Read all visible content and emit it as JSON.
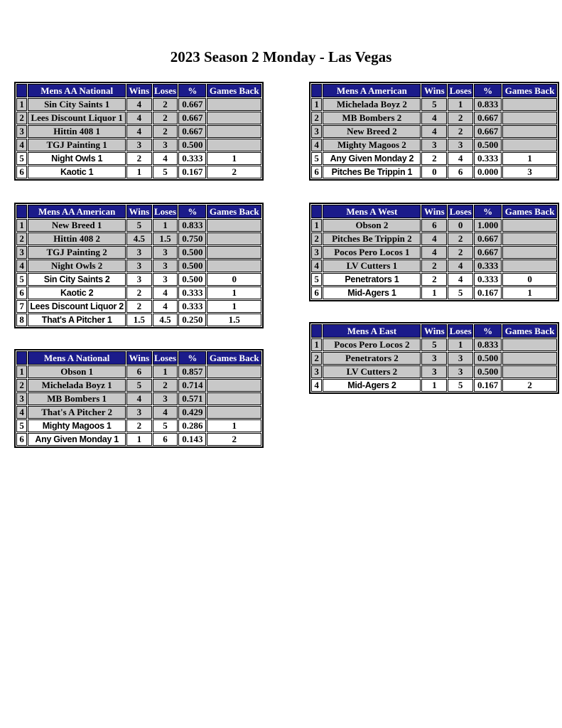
{
  "page": {
    "title": "2023 Season 2 Monday - Las Vegas"
  },
  "colors": {
    "header_bg": "#1b1b8a",
    "header_text": "#ffffff",
    "shaded_row_bg": "#c8c8c8",
    "unshaded_row_bg": "#ffffff",
    "border": "#000000",
    "text": "#000000"
  },
  "column_headers": {
    "rank": "",
    "wins": "Wins",
    "loses": "Loses",
    "pct": "%",
    "games_back": "Games Back"
  },
  "tables": [
    {
      "id": "mens-aa-national",
      "name": "Mens AA National",
      "rows": [
        {
          "rank": "1",
          "team": "Sin City Saints 1",
          "wins": "4",
          "loses": "2",
          "pct": "0.667",
          "games_back": "",
          "shaded": true
        },
        {
          "rank": "2",
          "team": "Lees Discount Liquor 1",
          "wins": "4",
          "loses": "2",
          "pct": "0.667",
          "games_back": "",
          "shaded": true
        },
        {
          "rank": "3",
          "team": "Hittin 408 1",
          "wins": "4",
          "loses": "2",
          "pct": "0.667",
          "games_back": "",
          "shaded": true
        },
        {
          "rank": "4",
          "team": "TGJ Painting 1",
          "wins": "3",
          "loses": "3",
          "pct": "0.500",
          "games_back": "",
          "shaded": true
        },
        {
          "rank": "5",
          "team": "Night Owls 1",
          "wins": "2",
          "loses": "4",
          "pct": "0.333",
          "games_back": "1",
          "shaded": false
        },
        {
          "rank": "6",
          "team": "Kaotic 1",
          "wins": "1",
          "loses": "5",
          "pct": "0.167",
          "games_back": "2",
          "shaded": false
        }
      ]
    },
    {
      "id": "mens-a-american",
      "name": "Mens A American",
      "rows": [
        {
          "rank": "1",
          "team": "Michelada Boyz 2",
          "wins": "5",
          "loses": "1",
          "pct": "0.833",
          "games_back": "",
          "shaded": true
        },
        {
          "rank": "2",
          "team": "MB Bombers 2",
          "wins": "4",
          "loses": "2",
          "pct": "0.667",
          "games_back": "",
          "shaded": true
        },
        {
          "rank": "3",
          "team": "New Breed 2",
          "wins": "4",
          "loses": "2",
          "pct": "0.667",
          "games_back": "",
          "shaded": true
        },
        {
          "rank": "4",
          "team": "Mighty Magoos 2",
          "wins": "3",
          "loses": "3",
          "pct": "0.500",
          "games_back": "",
          "shaded": true
        },
        {
          "rank": "5",
          "team": "Any Given Monday 2",
          "wins": "2",
          "loses": "4",
          "pct": "0.333",
          "games_back": "1",
          "shaded": false
        },
        {
          "rank": "6",
          "team": "Pitches Be Trippin 1",
          "wins": "0",
          "loses": "6",
          "pct": "0.000",
          "games_back": "3",
          "shaded": false
        }
      ]
    },
    {
      "id": "mens-aa-american",
      "name": "Mens AA American",
      "rows": [
        {
          "rank": "1",
          "team": "New Breed 1",
          "wins": "5",
          "loses": "1",
          "pct": "0.833",
          "games_back": "",
          "shaded": true
        },
        {
          "rank": "2",
          "team": "Hittin 408 2",
          "wins": "4.5",
          "loses": "1.5",
          "pct": "0.750",
          "games_back": "",
          "shaded": true
        },
        {
          "rank": "3",
          "team": "TGJ Painting 2",
          "wins": "3",
          "loses": "3",
          "pct": "0.500",
          "games_back": "",
          "shaded": true
        },
        {
          "rank": "4",
          "team": "Night Owls 2",
          "wins": "3",
          "loses": "3",
          "pct": "0.500",
          "games_back": "",
          "shaded": true
        },
        {
          "rank": "5",
          "team": "Sin City Saints 2",
          "wins": "3",
          "loses": "3",
          "pct": "0.500",
          "games_back": "0",
          "shaded": false
        },
        {
          "rank": "6",
          "team": "Kaotic 2",
          "wins": "2",
          "loses": "4",
          "pct": "0.333",
          "games_back": "1",
          "shaded": false
        },
        {
          "rank": "7",
          "team": "Lees Discount Liquor 2",
          "wins": "2",
          "loses": "4",
          "pct": "0.333",
          "games_back": "1",
          "shaded": false
        },
        {
          "rank": "8",
          "team": "That's A Pitcher 1",
          "wins": "1.5",
          "loses": "4.5",
          "pct": "0.250",
          "games_back": "1.5",
          "shaded": false
        }
      ]
    },
    {
      "id": "mens-a-west",
      "name": "Mens A West",
      "rows": [
        {
          "rank": "1",
          "team": "Obson 2",
          "wins": "6",
          "loses": "0",
          "pct": "1.000",
          "games_back": "",
          "shaded": true
        },
        {
          "rank": "2",
          "team": "Pitches Be Trippin 2",
          "wins": "4",
          "loses": "2",
          "pct": "0.667",
          "games_back": "",
          "shaded": true
        },
        {
          "rank": "3",
          "team": "Pocos Pero Locos 1",
          "wins": "4",
          "loses": "2",
          "pct": "0.667",
          "games_back": "",
          "shaded": true
        },
        {
          "rank": "4",
          "team": "LV Cutters 1",
          "wins": "2",
          "loses": "4",
          "pct": "0.333",
          "games_back": "",
          "shaded": true
        },
        {
          "rank": "5",
          "team": "Penetrators 1",
          "wins": "2",
          "loses": "4",
          "pct": "0.333",
          "games_back": "0",
          "shaded": false
        },
        {
          "rank": "6",
          "team": "Mid-Agers 1",
          "wins": "1",
          "loses": "5",
          "pct": "0.167",
          "games_back": "1",
          "shaded": false
        }
      ]
    },
    {
      "id": "mens-a-national",
      "name": "Mens A National",
      "rows": [
        {
          "rank": "1",
          "team": "Obson 1",
          "wins": "6",
          "loses": "1",
          "pct": "0.857",
          "games_back": "",
          "shaded": true
        },
        {
          "rank": "2",
          "team": "Michelada Boyz 1",
          "wins": "5",
          "loses": "2",
          "pct": "0.714",
          "games_back": "",
          "shaded": true
        },
        {
          "rank": "3",
          "team": "MB Bombers 1",
          "wins": "4",
          "loses": "3",
          "pct": "0.571",
          "games_back": "",
          "shaded": true
        },
        {
          "rank": "4",
          "team": "That's A Pitcher 2",
          "wins": "3",
          "loses": "4",
          "pct": "0.429",
          "games_back": "",
          "shaded": true
        },
        {
          "rank": "5",
          "team": "Mighty Magoos 1",
          "wins": "2",
          "loses": "5",
          "pct": "0.286",
          "games_back": "1",
          "shaded": false
        },
        {
          "rank": "6",
          "team": "Any Given Monday 1",
          "wins": "1",
          "loses": "6",
          "pct": "0.143",
          "games_back": "2",
          "shaded": false
        }
      ]
    },
    {
      "id": "mens-a-east",
      "name": "Mens A East",
      "rows": [
        {
          "rank": "1",
          "team": "Pocos Pero Locos 2",
          "wins": "5",
          "loses": "1",
          "pct": "0.833",
          "games_back": "",
          "shaded": true
        },
        {
          "rank": "2",
          "team": "Penetrators 2",
          "wins": "3",
          "loses": "3",
          "pct": "0.500",
          "games_back": "",
          "shaded": true
        },
        {
          "rank": "3",
          "team": "LV Cutters 2",
          "wins": "3",
          "loses": "3",
          "pct": "0.500",
          "games_back": "",
          "shaded": true
        },
        {
          "rank": "4",
          "team": "Mid-Agers 2",
          "wins": "1",
          "loses": "5",
          "pct": "0.167",
          "games_back": "2",
          "shaded": false
        }
      ]
    }
  ]
}
